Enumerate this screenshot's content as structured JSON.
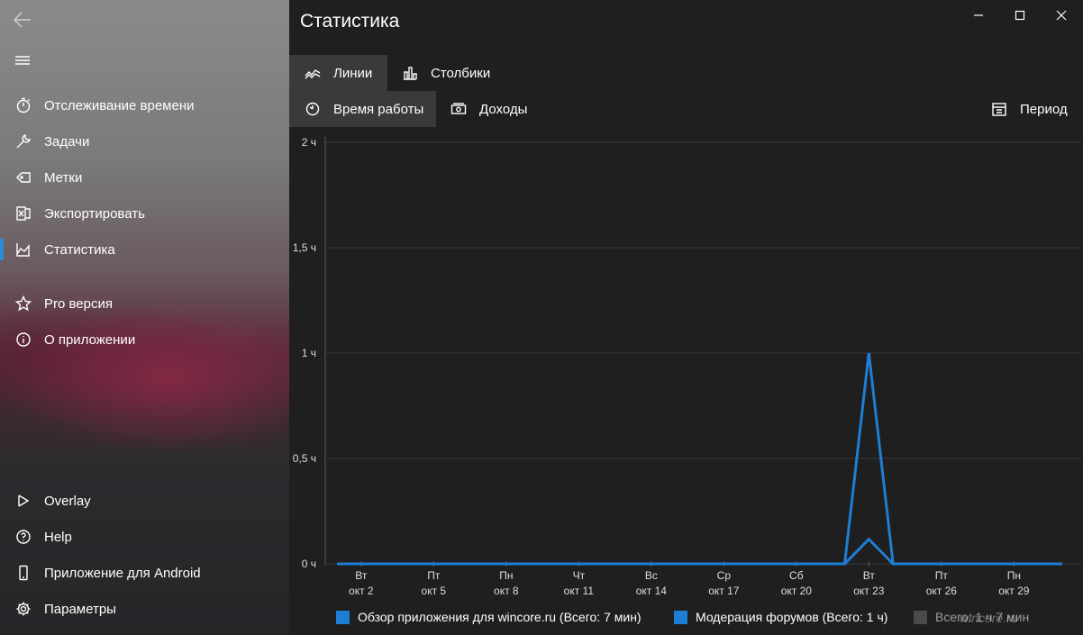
{
  "sidebar": {
    "items": [
      {
        "label": "Отслеживание времени",
        "icon": "stopwatch-icon"
      },
      {
        "label": "Задачи",
        "icon": "wrench-icon"
      },
      {
        "label": "Метки",
        "icon": "tag-icon"
      },
      {
        "label": "Экспортировать",
        "icon": "excel-icon"
      },
      {
        "label": "Статистика",
        "icon": "statistics-icon",
        "selected": true
      },
      {
        "label": "Pro версия",
        "icon": "star-icon"
      },
      {
        "label": "О приложении",
        "icon": "info-icon"
      }
    ],
    "bottom": [
      {
        "label": "Overlay",
        "icon": "overlay-icon"
      },
      {
        "label": "Help",
        "icon": "help-icon"
      },
      {
        "label": "Приложение для Android",
        "icon": "phone-icon"
      },
      {
        "label": "Параметры",
        "icon": "gear-icon"
      }
    ],
    "accent": "#2a8bd8"
  },
  "header": {
    "title": "Статистика"
  },
  "tabs": {
    "lines": "Линии",
    "bars": "Столбики",
    "work_time": "Время работы",
    "income": "Доходы",
    "period": "Период"
  },
  "chart_data": {
    "type": "line",
    "y_ticks": [
      "0 ч",
      "0,5 ч",
      "1 ч",
      "1,5 ч",
      "2 ч"
    ],
    "ylim": [
      0,
      2
    ],
    "x_ticks": [
      {
        "day": "Вт",
        "date": "окт 2"
      },
      {
        "day": "Пт",
        "date": "окт 5"
      },
      {
        "day": "Пн",
        "date": "окт 8"
      },
      {
        "day": "Чт",
        "date": "окт 11"
      },
      {
        "day": "Вс",
        "date": "окт 14"
      },
      {
        "day": "Ср",
        "date": "окт 17"
      },
      {
        "day": "Сб",
        "date": "окт 20"
      },
      {
        "day": "Вт",
        "date": "окт 23"
      },
      {
        "day": "Пт",
        "date": "окт 26"
      },
      {
        "day": "Пн",
        "date": "окт 29"
      }
    ],
    "x_start": "окт 1",
    "x_end": "окт 31",
    "series": [
      {
        "name": "Обзор приложения для wincore.ru (Всего: 7 мин)",
        "color": "#1e7ed4",
        "peak_date": "окт 23",
        "peak_value_hours": 0.117
      },
      {
        "name": "Модерация форумов (Всего: 1 ч)",
        "color": "#1e7ed4",
        "peak_date": "окт 23",
        "peak_value_hours": 1.0
      },
      {
        "name": "Всего: 1 ч 7 мин",
        "color": "#4a4a4a"
      }
    ],
    "grid": true,
    "legend_position": "bottom"
  },
  "watermark": "wincore.ru"
}
